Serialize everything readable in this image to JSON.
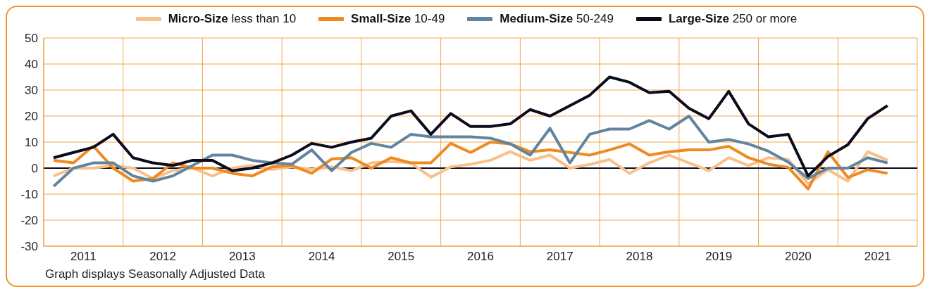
{
  "chart_data": {
    "type": "line",
    "x": [
      2011.125,
      2011.375,
      2011.625,
      2011.875,
      2012.125,
      2012.375,
      2012.625,
      2012.875,
      2013.125,
      2013.375,
      2013.625,
      2013.875,
      2014.125,
      2014.375,
      2014.625,
      2014.875,
      2015.125,
      2015.375,
      2015.625,
      2015.875,
      2016.125,
      2016.375,
      2016.625,
      2016.875,
      2017.125,
      2017.375,
      2017.625,
      2017.875,
      2018.125,
      2018.375,
      2018.625,
      2018.875,
      2019.125,
      2019.375,
      2019.625,
      2019.875,
      2020.125,
      2020.375,
      2020.625,
      2020.875,
      2021.125,
      2021.375,
      2021.625
    ],
    "series": [
      {
        "name": "Micro-Size less than 10",
        "color": "#f8c08a",
        "values": [
          -3,
          0,
          0,
          1,
          0,
          -4,
          -1,
          0,
          -3,
          0,
          1,
          -0.5,
          0.5,
          -0.5,
          0.5,
          -1,
          2,
          2.5,
          2,
          -3.5,
          0.5,
          1.5,
          3,
          6.3,
          3,
          5,
          0,
          1.4,
          3.3,
          -2,
          2,
          5,
          2,
          -1,
          4,
          1,
          4,
          3.3,
          -6,
          -0.6,
          -5,
          6.3,
          3
        ]
      },
      {
        "name": "Small-Size 10-49",
        "color": "#ee8a22",
        "values": [
          3,
          2,
          8.5,
          0,
          -5,
          -4,
          2,
          0,
          0,
          -2,
          -3,
          0.5,
          1,
          -2,
          3.5,
          4,
          0,
          4,
          2,
          2,
          9.5,
          6,
          10,
          9.3,
          6.3,
          7,
          6,
          5,
          7,
          9.3,
          5,
          6.3,
          7,
          7,
          8.4,
          4,
          1.5,
          0.3,
          -8,
          6.3,
          -3.6,
          -0.6,
          -2
        ]
      },
      {
        "name": "Medium-Size 50-249",
        "color": "#62849e",
        "values": [
          -7,
          0,
          2,
          2,
          -3,
          -5,
          -3,
          1,
          5,
          5,
          3,
          2,
          1.5,
          7,
          -1,
          6,
          9.5,
          8,
          13,
          12,
          12,
          12,
          11.5,
          9.3,
          5,
          15.3,
          2,
          13,
          15,
          15,
          18.3,
          15,
          20,
          10,
          11,
          9.3,
          6.5,
          2.3,
          -4,
          0,
          0,
          4,
          2
        ]
      },
      {
        "name": "Large-Size 250 or more",
        "color": "#0b0b1c",
        "values": [
          4,
          6,
          8,
          13,
          4,
          2,
          1,
          3,
          3,
          -1,
          0,
          2,
          5,
          9.5,
          8,
          10,
          11.5,
          20,
          22,
          13,
          21,
          16,
          16,
          17,
          22.5,
          20,
          24,
          28,
          35,
          33,
          29,
          29.5,
          23,
          19,
          29.5,
          17,
          12,
          13,
          -3,
          4.5,
          9,
          19,
          24
        ]
      }
    ],
    "xlim": [
      2011,
      2022
    ],
    "xticks": [
      {
        "value": 2011,
        "label": null
      },
      {
        "value": 2011.5,
        "label": "2011"
      },
      {
        "value": 2012,
        "label": null
      },
      {
        "value": 2012.5,
        "label": "2012"
      },
      {
        "value": 2013,
        "label": null
      },
      {
        "value": 2013.5,
        "label": "2013"
      },
      {
        "value": 2014,
        "label": null
      },
      {
        "value": 2014.5,
        "label": "2014"
      },
      {
        "value": 2015,
        "label": null
      },
      {
        "value": 2015.5,
        "label": "2015"
      },
      {
        "value": 2016,
        "label": null
      },
      {
        "value": 2016.5,
        "label": "2016"
      },
      {
        "value": 2017,
        "label": null
      },
      {
        "value": 2017.5,
        "label": "2017"
      },
      {
        "value": 2018,
        "label": null
      },
      {
        "value": 2018.5,
        "label": "2018"
      },
      {
        "value": 2019,
        "label": null
      },
      {
        "value": 2019.5,
        "label": "2019"
      },
      {
        "value": 2020,
        "label": null
      },
      {
        "value": 2020.5,
        "label": "2020"
      },
      {
        "value": 2021,
        "label": null
      },
      {
        "value": 2021.5,
        "label": "2021"
      },
      {
        "value": 2022,
        "label": null
      }
    ],
    "ylim": [
      -30,
      50
    ],
    "yticks": [
      -30,
      -20,
      -10,
      0,
      10,
      20,
      30,
      40,
      50
    ],
    "ref_lines": [
      {
        "axis": "y",
        "value": 0,
        "color": "#0b0b1c"
      }
    ],
    "grid": true,
    "legend": "top",
    "marker": "none",
    "line_style": "solid",
    "annotations": [
      "Graph displays Seasonally Adjusted Data"
    ]
  }
}
